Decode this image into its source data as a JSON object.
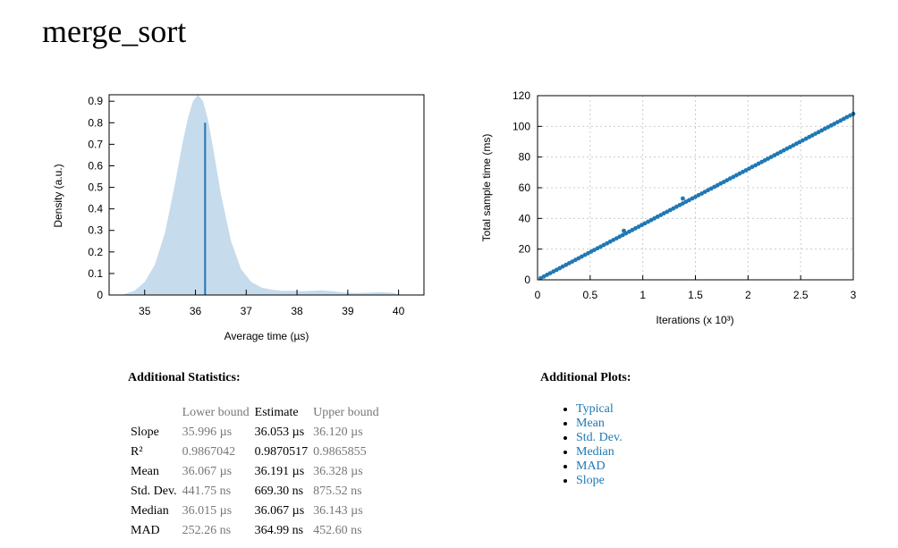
{
  "page": {
    "title": "merge_sort"
  },
  "chart_data": [
    {
      "type": "area",
      "xlabel": "Average time (µs)",
      "ylabel": "Density (a.u.)",
      "xlim": [
        34.3,
        40.5
      ],
      "ylim": [
        0,
        0.93
      ],
      "xticks": [
        "35",
        "36",
        "37",
        "38",
        "39",
        "40"
      ],
      "yticks": [
        "0",
        "0.1",
        "0.2",
        "0.3",
        "0.4",
        "0.5",
        "0.6",
        "0.7",
        "0.8",
        "0.9"
      ],
      "grid": false,
      "fill_color": "#c6dbec",
      "line_color": "#1f78b4",
      "estimate_line": {
        "x": 36.19,
        "y": 0.8
      },
      "density": {
        "x": [
          34.55,
          34.8,
          35.0,
          35.2,
          35.4,
          35.6,
          35.75,
          35.85,
          35.95,
          36.05,
          36.15,
          36.25,
          36.35,
          36.5,
          36.7,
          36.9,
          37.1,
          37.3,
          37.5,
          37.7,
          37.9,
          38.1,
          38.3,
          38.5,
          38.7,
          38.9,
          39.1,
          39.3,
          39.5,
          39.7,
          39.9,
          40.05
        ],
        "y": [
          0.0,
          0.02,
          0.06,
          0.14,
          0.29,
          0.52,
          0.71,
          0.82,
          0.9,
          0.93,
          0.9,
          0.81,
          0.68,
          0.47,
          0.25,
          0.12,
          0.06,
          0.035,
          0.025,
          0.02,
          0.02,
          0.018,
          0.02,
          0.022,
          0.018,
          0.012,
          0.01,
          0.01,
          0.012,
          0.013,
          0.01,
          0.0
        ]
      }
    },
    {
      "type": "scatter",
      "xlabel": "Iterations (x 10³)",
      "ylabel": "Total sample time (ms)",
      "xlim": [
        0,
        3
      ],
      "ylim": [
        0,
        120
      ],
      "xticks": [
        "0",
        "0.5",
        "1",
        "1.5",
        "2",
        "2.5",
        "3"
      ],
      "yticks": [
        "0",
        "20",
        "40",
        "60",
        "80",
        "100",
        "120"
      ],
      "grid": true,
      "point_color": "#1f78b4",
      "slope_per_1000": 36.053,
      "points_count": 100,
      "x_range": [
        0.03,
        3.0
      ],
      "outliers": [
        {
          "x": 0.82,
          "y": 32.0
        },
        {
          "x": 1.38,
          "y": 53.0
        }
      ]
    }
  ],
  "stats": {
    "heading": "Additional Statistics:",
    "columns": [
      "",
      "Lower bound",
      "Estimate",
      "Upper bound"
    ],
    "rows": [
      {
        "label": "Slope",
        "lower": "35.996 µs",
        "estimate": "36.053 µs",
        "upper": "36.120 µs"
      },
      {
        "label": "R²",
        "lower": "0.9867042",
        "estimate": "0.9870517",
        "upper": "0.9865855"
      },
      {
        "label": "Mean",
        "lower": "36.067 µs",
        "estimate": "36.191 µs",
        "upper": "36.328 µs"
      },
      {
        "label": "Std. Dev.",
        "lower": "441.75 ns",
        "estimate": "669.30 ns",
        "upper": "875.52 ns"
      },
      {
        "label": "Median",
        "lower": "36.015 µs",
        "estimate": "36.067 µs",
        "upper": "36.143 µs"
      },
      {
        "label": "MAD",
        "lower": "252.26 ns",
        "estimate": "364.99 ns",
        "upper": "452.60 ns"
      }
    ]
  },
  "plots": {
    "heading": "Additional Plots:",
    "links": [
      "Typical",
      "Mean",
      "Std. Dev.",
      "Median",
      "MAD",
      "Slope"
    ]
  }
}
